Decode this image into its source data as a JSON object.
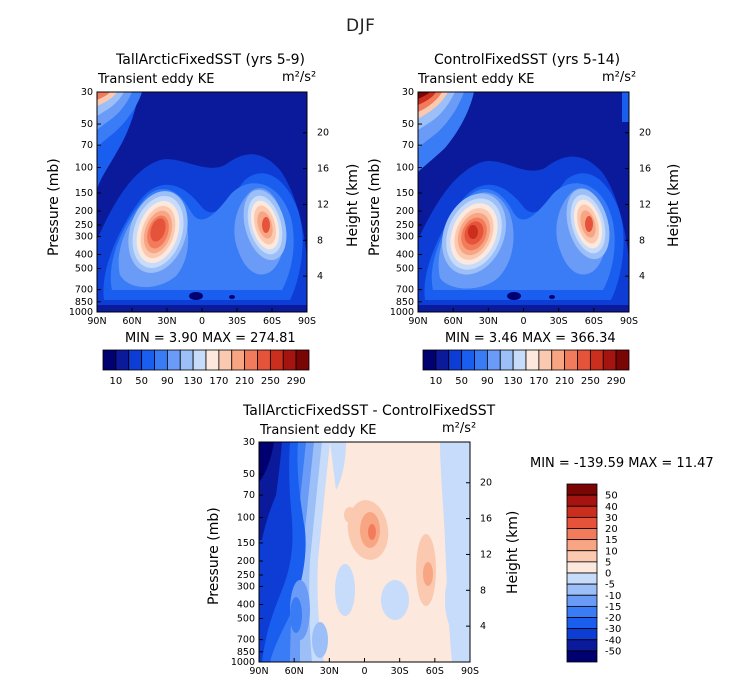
{
  "figure": {
    "title": "DJF"
  },
  "panels": [
    {
      "id": "p1",
      "title": "TallArcticFixedSST (yrs 5-9)",
      "variable": "Transient eddy KE",
      "units": "m²/s²",
      "minmax": "MIN =    3.90   MAX = 274.81"
    },
    {
      "id": "p2",
      "title": "ControlFixedSST (yrs 5-14)",
      "variable": "Transient eddy KE",
      "units": "m²/s²",
      "minmax": "MIN =    3.46   MAX = 366.34"
    },
    {
      "id": "p3",
      "title": "TallArcticFixedSST - ControlFixedSST",
      "variable": "Transient eddy KE",
      "units": "m²/s²",
      "minmax": "MIN = -139.59   MAX =  11.47"
    }
  ],
  "axes": {
    "ylabel": "Pressure (mb)",
    "y2label": "Height (km)",
    "pressure_ticks": [
      "30",
      "50",
      "70",
      "100",
      "150",
      "200",
      "250",
      "300",
      "400",
      "500",
      "700",
      "850",
      "1000"
    ],
    "height_ticks": [
      "20",
      "16",
      "12",
      "8",
      "4"
    ],
    "lat_ticks": [
      "90N",
      "60N",
      "30N",
      "0",
      "30S",
      "60S",
      "90S"
    ]
  },
  "colorbar_top": {
    "labels": [
      "10",
      "50",
      "90",
      "130",
      "170",
      "210",
      "250",
      "290"
    ],
    "colors": [
      "#000070",
      "#0a1a9a",
      "#0d3dd4",
      "#1a5ef0",
      "#3a7cf5",
      "#6a9cf7",
      "#9dbff8",
      "#c7dbfa",
      "#fce8dc",
      "#fbc9b0",
      "#f8a584",
      "#f27b5c",
      "#e5533a",
      "#cc2e1e",
      "#a51410",
      "#7a0505"
    ]
  },
  "colorbar_diff": {
    "labels": [
      "50",
      "40",
      "30",
      "20",
      "15",
      "10",
      "5",
      "0",
      "-5",
      "-10",
      "-15",
      "-20",
      "-30",
      "-40",
      "-50"
    ],
    "colors": [
      "#7a0505",
      "#a51410",
      "#cc2e1e",
      "#e5533a",
      "#f27b5c",
      "#f8a584",
      "#fbc9b0",
      "#fce8dc",
      "#c7dbfa",
      "#9dbff8",
      "#6a9cf7",
      "#3a7cf5",
      "#1a5ef0",
      "#0d3dd4",
      "#0a1a9a",
      "#000070"
    ]
  },
  "chart_data": [
    {
      "type": "heatmap",
      "title": "TallArcticFixedSST (yrs 5-9)",
      "subtitle": "Transient eddy KE",
      "units": "m²/s²",
      "xlabel": "",
      "ylabel": "Pressure (mb)",
      "y2label": "Height (km)",
      "x_ticks": [
        "90N",
        "60N",
        "30N",
        "0",
        "30S",
        "60S",
        "90S"
      ],
      "min": 3.9,
      "max": 274.81,
      "peaks": [
        {
          "lat": 37,
          "pressure_mb": 250,
          "value": 274.81
        },
        {
          "lat": -48,
          "pressure_mb": 250,
          "value": 210
        },
        {
          "lat": 86,
          "pressure_mb": 30,
          "value": 180
        }
      ]
    },
    {
      "type": "heatmap",
      "title": "ControlFixedSST (yrs 5-14)",
      "subtitle": "Transient eddy KE",
      "units": "m²/s²",
      "xlabel": "",
      "ylabel": "Pressure (mb)",
      "y2label": "Height (km)",
      "x_ticks": [
        "90N",
        "60N",
        "30N",
        "0",
        "30S",
        "60S",
        "90S"
      ],
      "min": 3.46,
      "max": 366.34,
      "peaks": [
        {
          "lat": 40,
          "pressure_mb": 250,
          "value": 250
        },
        {
          "lat": -48,
          "pressure_mb": 250,
          "value": 230
        },
        {
          "lat": 88,
          "pressure_mb": 30,
          "value": 366.34
        }
      ]
    },
    {
      "type": "heatmap",
      "title": "TallArcticFixedSST - ControlFixedSST",
      "subtitle": "Transient eddy KE",
      "units": "m²/s²",
      "xlabel": "",
      "ylabel": "Pressure (mb)",
      "y2label": "Height (km)",
      "x_ticks": [
        "90N",
        "60N",
        "30N",
        "0",
        "30S",
        "60S",
        "90S"
      ],
      "min": -139.59,
      "max": 11.47
    }
  ]
}
